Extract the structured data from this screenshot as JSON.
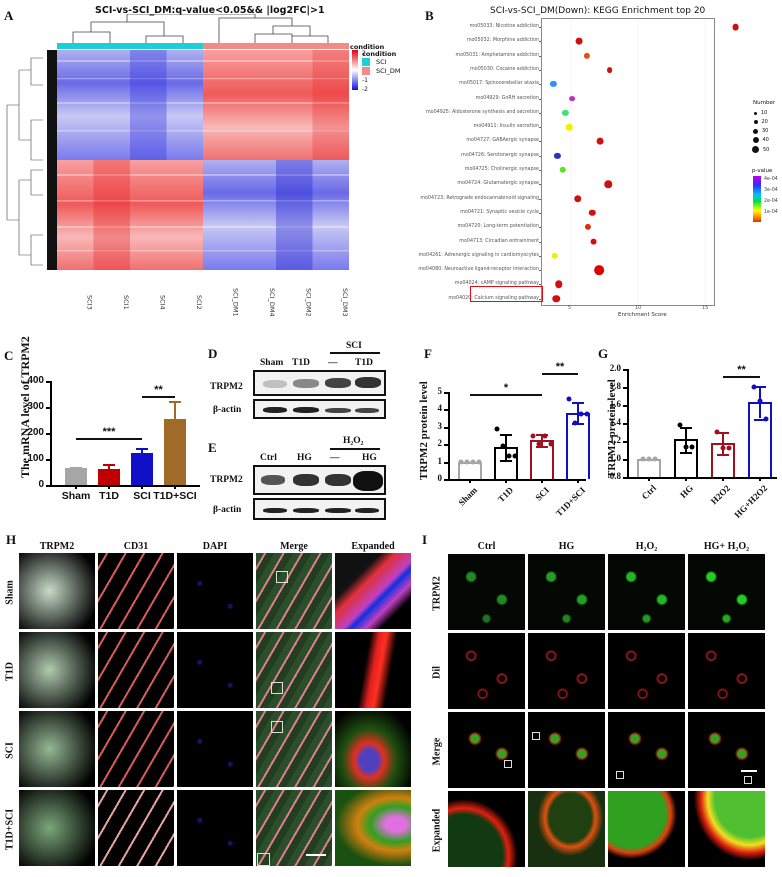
{
  "panels": {
    "A": "A",
    "B": "B",
    "C": "C",
    "D": "D",
    "E": "E",
    "F": "F",
    "G": "G",
    "H": "H",
    "I": "I"
  },
  "heatmap": {
    "title": "SCI-vs-SCI_DM:q-value<0.05&& |log2FC|>1",
    "columns": [
      "SCI3",
      "SCI1",
      "SCI4",
      "SCI2",
      "SCI_DM1",
      "SCI_DM4",
      "SCI_DM2",
      "SCI_DM3"
    ],
    "scale_title": "condition",
    "scale_ticks": [
      "2",
      "1",
      "0",
      "-1",
      "-2"
    ],
    "legend_title": "condition",
    "legend": [
      {
        "label": "SCI",
        "color": "#1fcfd6"
      },
      {
        "label": "SCI_DM",
        "color": "#f28a85"
      }
    ],
    "colors": {
      "high": "#e81a1a",
      "mid": "#ffffff",
      "low": "#2222dd"
    }
  },
  "kegg": {
    "title": "SCI-vs-SCI_DM(Down): KEGG Enrichment top 20",
    "xlabel": "Enrichment Score",
    "xticks": [
      "5",
      "10",
      "15"
    ],
    "number_legend_title": "Number",
    "number_legend": [
      "10",
      "20",
      "30",
      "40",
      "50"
    ],
    "pvalue_legend_title": "p-value",
    "pvalue_legend": [
      "4e-04",
      "3e-04",
      "2e-04",
      "1e-04"
    ],
    "highlighted": "mo04020: Calcium signaling pathway"
  },
  "chart_data": [
    {
      "type": "bar",
      "panel": "C",
      "title": "",
      "ylabel": "The mRNA level of TRPM2",
      "categories": [
        "Sham",
        "T1D",
        "SCI",
        "T1D+SCI"
      ],
      "values": [
        65,
        60,
        123,
        252
      ],
      "errors": [
        4,
        20,
        20,
        70
      ],
      "colors": [
        "#a6a6a6",
        "#c00000",
        "#1010c8",
        "#a06a28"
      ],
      "ylim": [
        0,
        400
      ],
      "yticks": [
        "0",
        "100",
        "200",
        "300",
        "400"
      ],
      "significance": [
        {
          "from": "Sham",
          "to": "SCI",
          "label": "***"
        },
        {
          "from": "SCI",
          "to": "T1D+SCI",
          "label": "**"
        }
      ]
    },
    {
      "type": "scatter",
      "panel": "B",
      "title": "SCI-vs-SCI_DM(Down): KEGG Enrichment top 20",
      "xlabel": "Enrichment Score",
      "ylabel": "",
      "xlim": [
        3,
        18
      ],
      "categories": [
        "mo05033: Nicotine addiction",
        "mo05032: Morphine addiction",
        "mo05031: Amphetamine addiction",
        "mo05030: Cocaine addiction",
        "mo05017: Spinocerebellar ataxia",
        "mo04929: GnRH secretion",
        "mo04925: Aldosterone synthesis and secretion",
        "mo04911: Insulin secretion",
        "mo04727: GABAergic synapse",
        "mo04726: Serotonergic synapse",
        "mo04725: Cholinergic synapse",
        "mo04724: Glutamatergic synapse",
        "mo04723: Retrograde endocannabinoid signaling",
        "mo04721: Synaptic vesicle cycle",
        "mo04720: Long-term potentiation",
        "mo04713: Circadian entrainment",
        "mo04261: Adrenergic signaling in cardiomyocytes",
        "mo04080: Neuroactive ligand-receptor interaction",
        "mo04024: cAMP signaling pathway",
        "mo04020: Calcium signaling pathway"
      ],
      "enrichment_score": [
        17.3,
        5.6,
        6.2,
        7.9,
        3.7,
        5.1,
        4.6,
        4.9,
        7.2,
        4.0,
        4.4,
        7.8,
        5.5,
        6.6,
        6.3,
        6.7,
        3.8,
        7.1,
        4.1,
        3.9
      ],
      "number": [
        15,
        15,
        10,
        8,
        10,
        8,
        10,
        12,
        15,
        10,
        12,
        20,
        20,
        12,
        10,
        15,
        12,
        45,
        20,
        20
      ],
      "pvalue_color": [
        "#d01010",
        "#d01010",
        "#e05010",
        "#d01010",
        "#3090ff",
        "#c030c0",
        "#40e080",
        "#f0f000",
        "#d01010",
        "#3030c0",
        "#60e020",
        "#d01010",
        "#d01010",
        "#d01010",
        "#e03010",
        "#d01010",
        "#f0f000",
        "#e00000",
        "#d01010",
        "#d01010"
      ]
    },
    {
      "type": "bar",
      "panel": "F",
      "ylabel": "TRPM2 protein level",
      "categories": [
        "Sham",
        "T1D",
        "SCI",
        "T1D+SCI"
      ],
      "values": [
        1.0,
        1.85,
        2.25,
        3.8
      ],
      "errors": [
        0.02,
        0.75,
        0.35,
        0.6
      ],
      "points": [
        [
          1,
          1,
          1,
          1
        ],
        [
          2.9,
          1.9,
          1.3,
          1.3
        ],
        [
          2.5,
          2.0,
          2.5,
          2.0
        ],
        [
          4.6,
          3.2,
          3.75,
          3.75
        ]
      ],
      "colors": [
        "#a6a6a6",
        "#000000",
        "#a01020",
        "#1010c0"
      ],
      "ylim": [
        0,
        5
      ],
      "yticks": [
        "0",
        "1",
        "2",
        "3",
        "4",
        "5"
      ],
      "significance": [
        {
          "from": "Sham",
          "to": "SCI",
          "label": "*"
        },
        {
          "from": "SCI",
          "to": "T1D+SCI",
          "label": "**"
        }
      ]
    },
    {
      "type": "bar",
      "panel": "G",
      "ylabel": "TRPM2 protein level",
      "categories": [
        "Ctrl",
        "HG",
        "H2O2",
        "HG+H2O2"
      ],
      "values": [
        1.0,
        1.22,
        1.18,
        1.63
      ],
      "errors": [
        0.01,
        0.14,
        0.12,
        0.18
      ],
      "points": [
        [
          1,
          1,
          1
        ],
        [
          1.38,
          1.13,
          1.13
        ],
        [
          1.3,
          1.12,
          1.12
        ],
        [
          1.8,
          1.65,
          1.45
        ]
      ],
      "colors": [
        "#a6a6a6",
        "#000000",
        "#a01020",
        "#1010c0"
      ],
      "ylim": [
        0.8,
        2.0
      ],
      "yticks": [
        "0.8",
        "1.0",
        "1.2",
        "1.4",
        "1.6",
        "1.8",
        "2.0"
      ],
      "significance": [
        {
          "from": "H2O2",
          "to": "HG+H2O2",
          "label": "**"
        }
      ]
    }
  ],
  "blots": {
    "D": {
      "lanes": [
        "Sham",
        "T1D",
        "—",
        "T1D"
      ],
      "group": "SCI",
      "rows": [
        "TRPM2",
        "β-actin"
      ]
    },
    "E": {
      "lanes": [
        "Ctrl",
        "HG",
        "—",
        "HG"
      ],
      "group": "H₂O₂",
      "rows": [
        "TRPM2",
        "β-actin"
      ]
    }
  },
  "panel_H": {
    "columns": [
      "TRPM2",
      "CD31",
      "DAPI",
      "Merge",
      "Expanded"
    ],
    "rows": [
      "Sham",
      "T1D",
      "SCI",
      "T1D+SCI"
    ]
  },
  "panel_I": {
    "columns": [
      "Ctrl",
      "HG",
      "H₂O₂",
      "HG+ H₂O₂"
    ],
    "rows": [
      "TRPM2",
      "Dil",
      "Merge",
      "Expanded"
    ]
  }
}
